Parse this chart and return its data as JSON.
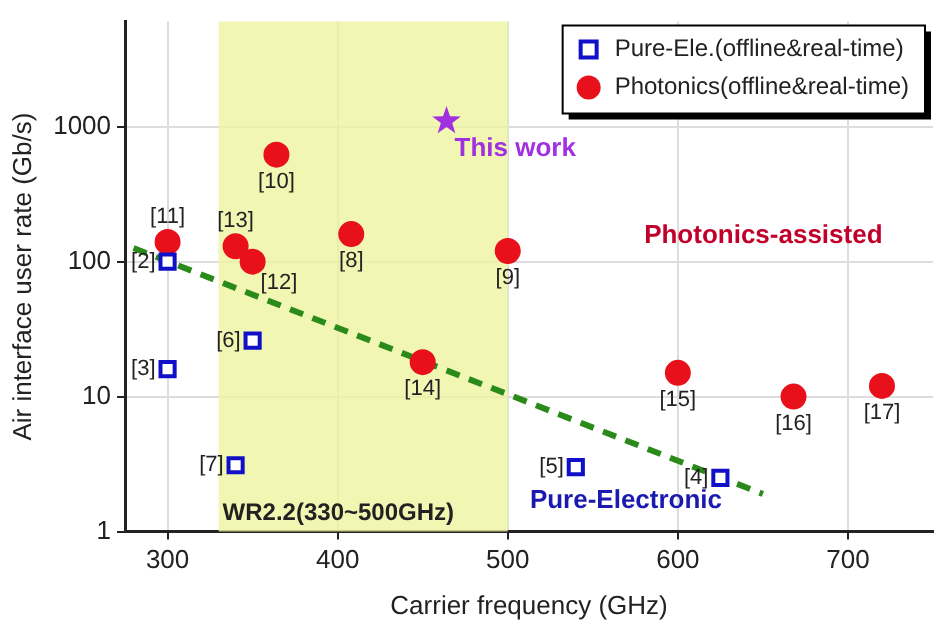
{
  "chart_data": {
    "type": "scatter",
    "xlabel": "Carrier frequency (GHz)",
    "ylabel": "Air interface user rate (Gb/s)",
    "xlim": [
      275,
      750
    ],
    "xticks": [
      300,
      400,
      500,
      600,
      700
    ],
    "ylim": [
      1,
      6000
    ],
    "yticks": [
      1,
      10,
      100,
      1000
    ],
    "log": "y",
    "grid": true,
    "legend": "top right",
    "series": [
      {
        "name": "Pure-Ele.(offline&real-time)",
        "color": "#1010c8",
        "marker": "square",
        "x": [
          300,
          300,
          350,
          340,
          540,
          625
        ],
        "values": [
          100,
          16,
          26,
          3.1,
          3,
          2.5
        ]
      },
      {
        "name": "Photonics(offline&real-time)",
        "color": "#e8101a",
        "marker": "circle",
        "x": [
          300,
          364,
          340,
          350,
          408,
          500,
          450,
          600,
          668,
          720
        ],
        "values": [
          140,
          620,
          130,
          100,
          160,
          120,
          18,
          15,
          10,
          12
        ]
      },
      {
        "color": "#a030e0",
        "marker": "star",
        "x": [
          464
        ],
        "values": [
          1100
        ]
      },
      {
        "type": "line",
        "color": "#2a8a1a",
        "line_style": "dashed",
        "marker": "none",
        "x": [
          280,
          650
        ],
        "values": [
          126,
          1.9
        ]
      }
    ],
    "bands": [
      {
        "axis": "x",
        "from": 330,
        "to": 500,
        "label": "WR2.2(330~500GHz)",
        "color": "#eef4a0"
      }
    ],
    "annotations": [
      {
        "text": "This work",
        "x": 464,
        "y": 1100
      },
      {
        "text": "[2]",
        "x": 300,
        "y": 100
      },
      {
        "text": "[3]",
        "x": 300,
        "y": 16
      },
      {
        "text": "[6]",
        "x": 350,
        "y": 26
      },
      {
        "text": "[7]",
        "x": 340,
        "y": 3.1
      },
      {
        "text": "[5]",
        "x": 540,
        "y": 3
      },
      {
        "text": "[4]",
        "x": 625,
        "y": 2.5
      },
      {
        "text": "[11]",
        "x": 300,
        "y": 140
      },
      {
        "text": "[10]",
        "x": 364,
        "y": 620
      },
      {
        "text": "[13]",
        "x": 340,
        "y": 130
      },
      {
        "text": "[12]",
        "x": 350,
        "y": 100
      },
      {
        "text": "[8]",
        "x": 408,
        "y": 160
      },
      {
        "text": "[9]",
        "x": 500,
        "y": 120
      },
      {
        "text": "[14]",
        "x": 450,
        "y": 18
      },
      {
        "text": "[15]",
        "x": 600,
        "y": 15
      },
      {
        "text": "[16]",
        "x": 668,
        "y": 10
      },
      {
        "text": "[17]",
        "x": 720,
        "y": 12
      },
      "Photonics-assisted",
      "Pure-Electronic"
    ]
  }
}
